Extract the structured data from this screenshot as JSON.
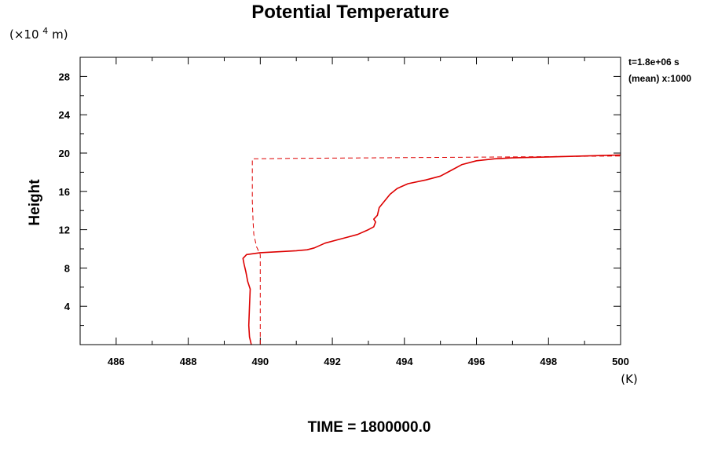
{
  "chart_data": {
    "type": "line",
    "title": "Potential Temperature",
    "xlabel": "",
    "ylabel": "Height",
    "x_unit": "(K)",
    "y_unit": {
      "prefix": "(×10",
      "exponent": "4",
      "suffix": " m)"
    },
    "xlim": [
      485,
      500
    ],
    "ylim": [
      0,
      30
    ],
    "x_ticks": [
      486,
      488,
      490,
      492,
      494,
      496,
      498,
      500
    ],
    "x_tick_labels": [
      "486",
      "488",
      "490",
      "492",
      "494",
      "496",
      "498",
      "500"
    ],
    "y_ticks": [
      4,
      8,
      12,
      16,
      20,
      24,
      28
    ],
    "y_tick_labels": [
      "4",
      "8",
      "12",
      "16",
      "20",
      "24",
      "28"
    ],
    "grid": false,
    "annotations": {
      "time_line": "t=1.8e+06 s",
      "scale_line": "(mean) x:1000"
    },
    "footer": "TIME = 1800000.0",
    "series": [
      {
        "style": "solid",
        "color": "#dd0000",
        "points": [
          [
            489.75,
            0.0
          ],
          [
            489.7,
            0.8
          ],
          [
            489.68,
            2.0
          ],
          [
            489.7,
            4.0
          ],
          [
            489.72,
            5.8
          ],
          [
            489.65,
            6.6
          ],
          [
            489.6,
            7.6
          ],
          [
            489.55,
            8.4
          ],
          [
            489.52,
            9.0
          ],
          [
            489.62,
            9.4
          ],
          [
            490.0,
            9.6
          ],
          [
            490.5,
            9.7
          ],
          [
            491.0,
            9.8
          ],
          [
            491.3,
            9.9
          ],
          [
            491.5,
            10.1
          ],
          [
            491.8,
            10.6
          ],
          [
            492.1,
            10.9
          ],
          [
            492.4,
            11.2
          ],
          [
            492.7,
            11.5
          ],
          [
            493.0,
            12.0
          ],
          [
            493.15,
            12.3
          ],
          [
            493.2,
            12.8
          ],
          [
            493.15,
            13.1
          ],
          [
            493.25,
            13.5
          ],
          [
            493.3,
            14.3
          ],
          [
            493.45,
            15.0
          ],
          [
            493.6,
            15.7
          ],
          [
            493.8,
            16.3
          ],
          [
            494.1,
            16.8
          ],
          [
            494.6,
            17.2
          ],
          [
            495.0,
            17.6
          ],
          [
            495.3,
            18.2
          ],
          [
            495.6,
            18.8
          ],
          [
            496.0,
            19.2
          ],
          [
            496.5,
            19.4
          ],
          [
            497.0,
            19.5
          ],
          [
            498.0,
            19.6
          ],
          [
            499.0,
            19.7
          ],
          [
            500.0,
            19.8
          ]
        ]
      },
      {
        "style": "dashed",
        "color": "#dd0000",
        "points": [
          [
            490.0,
            0.0
          ],
          [
            490.0,
            9.4
          ],
          [
            489.9,
            10.2
          ],
          [
            489.82,
            11.5
          ],
          [
            489.8,
            12.8
          ],
          [
            489.78,
            15.0
          ],
          [
            489.78,
            19.4
          ],
          [
            491.0,
            19.45
          ],
          [
            493.0,
            19.5
          ],
          [
            495.0,
            19.55
          ],
          [
            497.0,
            19.6
          ],
          [
            498.5,
            19.65
          ],
          [
            500.0,
            19.7
          ]
        ]
      }
    ]
  }
}
